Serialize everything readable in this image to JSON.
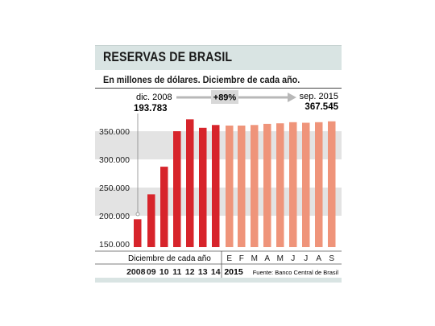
{
  "header": {
    "title": "RESERVAS DE BRASIL",
    "subtitle": "En millones de dólares. Diciembre de cada año."
  },
  "annotations": {
    "start_label": "dic. 2008",
    "start_value": "193.783",
    "change_label": "+89%",
    "end_label": "sep. 2015",
    "end_value": "367.545"
  },
  "footer": {
    "group_label": "Diciembre de cada año",
    "year_2015": "2015",
    "source": "Fuente: Banco Central de Brasil"
  },
  "colors": {
    "annual_bars": "#d7242b",
    "monthly_bars": "#ef947a",
    "band": "#e3e3e3",
    "title_band": "#d9e4e3",
    "footer_band": "#d9e4e3"
  },
  "chart_data": {
    "type": "bar",
    "ylabel": "",
    "xlabel": "",
    "ylim": [
      150000,
      370000
    ],
    "yticks": [
      150000,
      200000,
      250000,
      300000,
      350000
    ],
    "ytick_labels": [
      "150.000",
      "200.000",
      "250.000",
      "300.000",
      "350.000"
    ],
    "series": [
      {
        "group": "annual",
        "categories": [
          "2008",
          "09",
          "10",
          "11",
          "12",
          "13",
          "14"
        ],
        "values": [
          193783,
          238000,
          287000,
          350000,
          371000,
          356000,
          361000
        ]
      },
      {
        "group": "monthly_2015",
        "categories": [
          "E",
          "F",
          "M",
          "A",
          "M",
          "J",
          "J",
          "A",
          "S"
        ],
        "values": [
          360000,
          360000,
          361000,
          363000,
          364000,
          366000,
          365000,
          366000,
          367545
        ]
      }
    ]
  }
}
